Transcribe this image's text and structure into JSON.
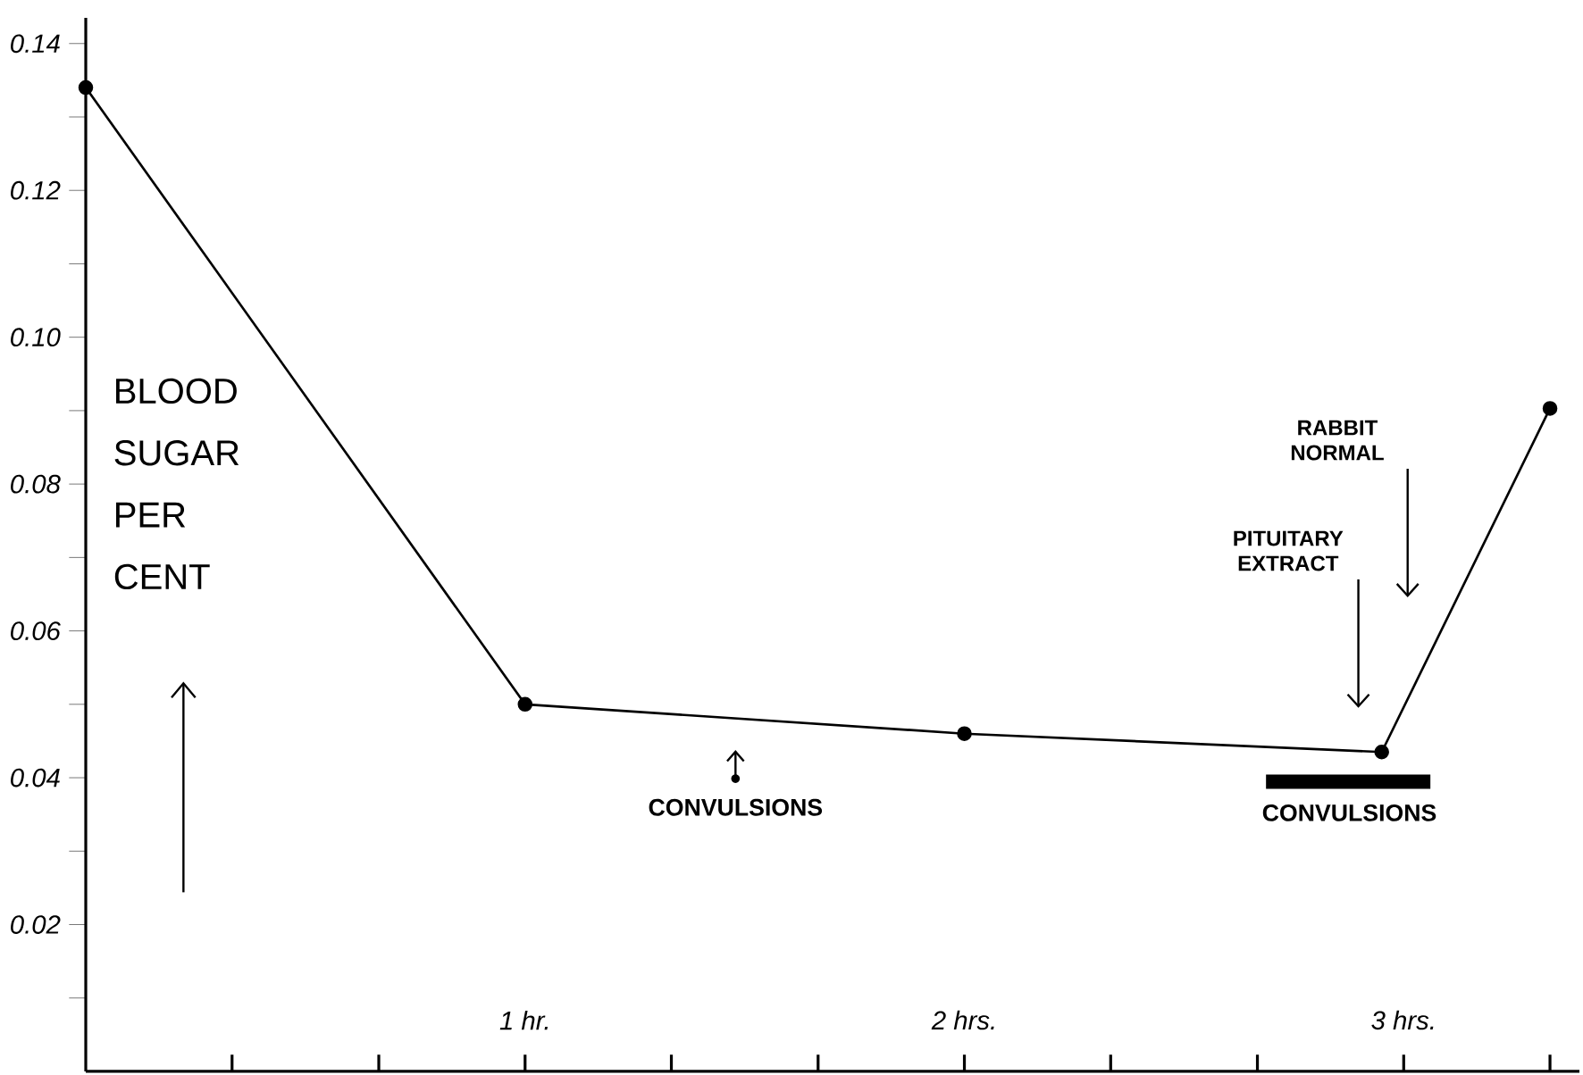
{
  "chart_data": {
    "type": "line",
    "ylabel": "BLOOD SUGAR PER CENT",
    "x": [
      0,
      1,
      2,
      2.95,
      3.333
    ],
    "series": [
      {
        "color": "#000000",
        "values": [
          0.134,
          0.05,
          0.046,
          0.0435,
          0.0903
        ]
      }
    ],
    "xlim": [
      0,
      3.4
    ],
    "xticks": [
      {
        "value": 0.333,
        "label": null
      },
      {
        "value": 0.667,
        "label": null
      },
      {
        "value": 1,
        "label": "1 hr."
      },
      {
        "value": 1.333,
        "label": null
      },
      {
        "value": 1.667,
        "label": null
      },
      {
        "value": 2,
        "label": "2 hrs."
      },
      {
        "value": 2.333,
        "label": null
      },
      {
        "value": 2.667,
        "label": null
      },
      {
        "value": 3,
        "label": "3 hrs."
      },
      {
        "value": 3.333,
        "label": null
      }
    ],
    "ylim": [
      0,
      0.1435
    ],
    "yticks": [
      {
        "value": 0.01,
        "label": null
      },
      0.02,
      {
        "value": 0.03,
        "label": null
      },
      0.04,
      {
        "value": 0.05,
        "label": null
      },
      0.06,
      {
        "value": 0.07,
        "label": null
      },
      0.08,
      {
        "value": 0.09,
        "label": null
      },
      {
        "value": 0.1,
        "label": "0.10"
      },
      {
        "value": 0.11,
        "label": null
      },
      0.12,
      {
        "value": 0.13,
        "label": null
      },
      0.14
    ],
    "annotations": [
      "CONVULSIONS",
      "PITUITARY EXTRACT",
      "RABBIT NORMAL",
      "CONVULSIONS"
    ],
    "marker": "circle",
    "line_style": "solid",
    "grid": false
  }
}
